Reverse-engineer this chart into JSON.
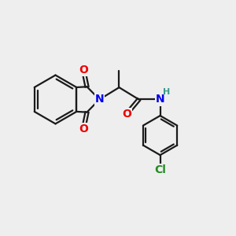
{
  "bg_color": "#eeeeee",
  "bond_color": "#1a1a1a",
  "N_color": "#0000ee",
  "O_color": "#ee0000",
  "Cl_color": "#228b22",
  "H_color": "#3a9a8a",
  "bond_width": 1.6,
  "font_size_atom": 10,
  "font_size_H": 8,
  "xlim": [
    0,
    10
  ],
  "ylim": [
    0,
    10
  ]
}
